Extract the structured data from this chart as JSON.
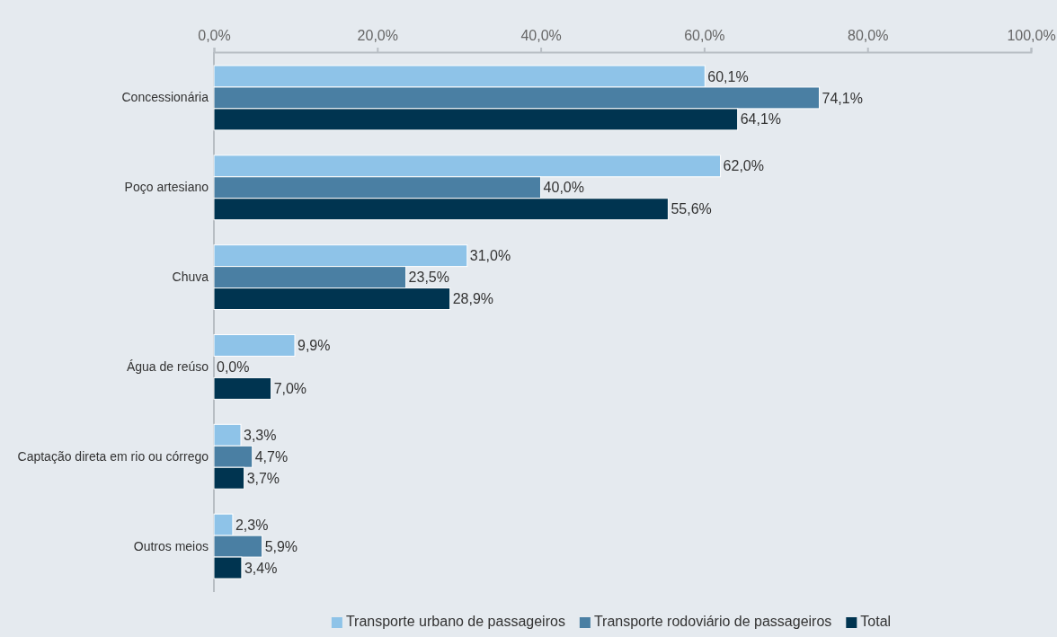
{
  "chart_data": {
    "type": "bar",
    "orientation": "horizontal",
    "categories": [
      "Concessionária",
      "Poço artesiano",
      "Chuva",
      "Água de reúso",
      "Captação direta em rio ou córrego",
      "Outros meios"
    ],
    "series": [
      {
        "name": "Transporte urbano de passageiros",
        "color": "#8ec3e8",
        "values": [
          60.1,
          62.0,
          31.0,
          9.9,
          3.3,
          2.3
        ],
        "value_labels": [
          "60,1%",
          "62,0%",
          "31,0%",
          "9,9%",
          "3,3%",
          "2,3%"
        ]
      },
      {
        "name": "Transporte rodoviário de passageiros",
        "color": "#4a7fa3",
        "values": [
          74.1,
          40.0,
          23.5,
          0.0,
          4.7,
          5.9
        ],
        "value_labels": [
          "74,1%",
          "40,0%",
          "23,5%",
          "0,0%",
          "4,7%",
          "5,9%"
        ]
      },
      {
        "name": "Total",
        "color": "#003450",
        "values": [
          64.1,
          55.6,
          28.9,
          7.0,
          3.7,
          3.4
        ],
        "value_labels": [
          "64,1%",
          "55,6%",
          "28,9%",
          "7,0%",
          "3,7%",
          "3,4%"
        ]
      }
    ],
    "xlim": [
      0,
      100
    ],
    "xticks": [
      {
        "value": 0,
        "label": "0,0%"
      },
      {
        "value": 20,
        "label": "20,0%"
      },
      {
        "value": 40,
        "label": "40,0%"
      },
      {
        "value": 60,
        "label": "60,0%"
      },
      {
        "value": 80,
        "label": "80,0%"
      },
      {
        "value": 100,
        "label": "100,0%"
      }
    ],
    "legend": "bottom",
    "grid": false
  }
}
